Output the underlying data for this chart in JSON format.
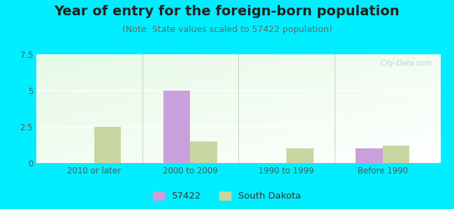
{
  "title": "Year of entry for the foreign-born population",
  "subtitle": "(Note: State values scaled to 57422 population)",
  "categories": [
    "2010 or later",
    "2000 to 2009",
    "1990 to 1999",
    "Before 1990"
  ],
  "values_57422": [
    0,
    5.0,
    0,
    1.0
  ],
  "values_sd": [
    2.5,
    1.5,
    1.0,
    1.2
  ],
  "color_57422": "#c9a0dc",
  "color_sd": "#c8d5a0",
  "ylim": [
    0,
    7.5
  ],
  "yticks": [
    0,
    2.5,
    5,
    7.5
  ],
  "background_outer": "#00eeff",
  "bar_width": 0.28,
  "legend_label_57422": "57422",
  "legend_label_sd": "South Dakota",
  "title_fontsize": 14,
  "subtitle_fontsize": 9,
  "watermark": "City-Data.com"
}
